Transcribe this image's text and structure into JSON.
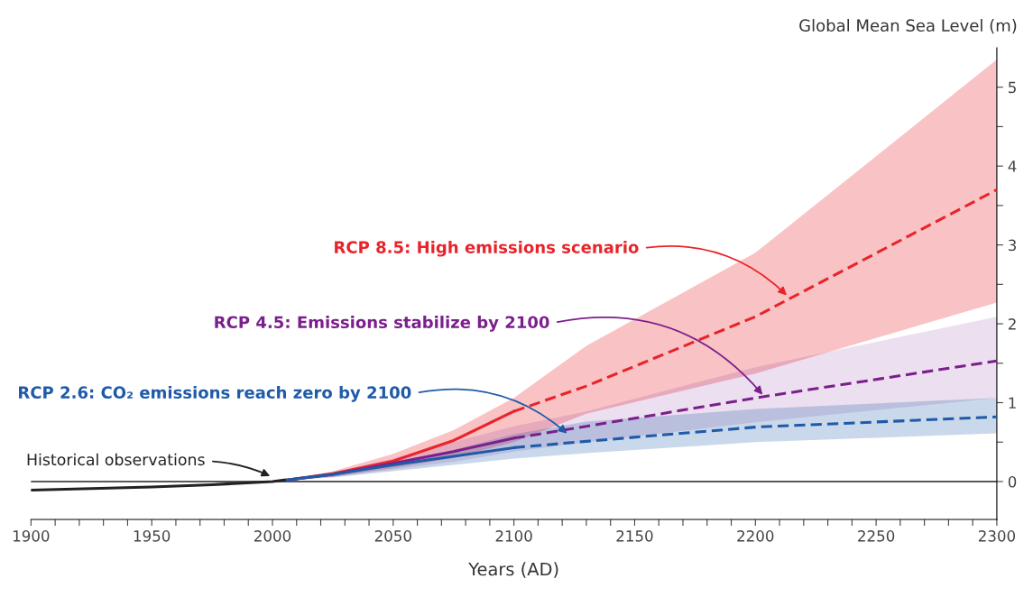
{
  "chart_data": {
    "type": "line",
    "xlabel": "Years (AD)",
    "ylabel": "Global Mean Sea Level (m)",
    "xlim": [
      1900,
      2300
    ],
    "ylim": [
      -0.48,
      5.5
    ],
    "xticks": [
      1900,
      {
        "value": 1910,
        "label": null
      },
      {
        "value": 1920,
        "label": null
      },
      {
        "value": 1930,
        "label": null
      },
      {
        "value": 1940,
        "label": null
      },
      1950,
      {
        "value": 1960,
        "label": null
      },
      {
        "value": 1970,
        "label": null
      },
      {
        "value": 1980,
        "label": null
      },
      {
        "value": 1990,
        "label": null
      },
      2000,
      {
        "value": 2010,
        "label": null
      },
      {
        "value": 2020,
        "label": null
      },
      {
        "value": 2030,
        "label": null
      },
      {
        "value": 2040,
        "label": null
      },
      2050,
      {
        "value": 2060,
        "label": null
      },
      {
        "value": 2070,
        "label": null
      },
      {
        "value": 2080,
        "label": null
      },
      {
        "value": 2090,
        "label": null
      },
      2100,
      {
        "value": 2110,
        "label": null
      },
      {
        "value": 2120,
        "label": null
      },
      {
        "value": 2130,
        "label": null
      },
      {
        "value": 2140,
        "label": null
      },
      2150,
      {
        "value": 2160,
        "label": null
      },
      {
        "value": 2170,
        "label": null
      },
      {
        "value": 2180,
        "label": null
      },
      {
        "value": 2190,
        "label": null
      },
      2200,
      {
        "value": 2210,
        "label": null
      },
      {
        "value": 2220,
        "label": null
      },
      {
        "value": 2230,
        "label": null
      },
      {
        "value": 2240,
        "label": null
      },
      2250,
      {
        "value": 2260,
        "label": null
      },
      {
        "value": 2270,
        "label": null
      },
      {
        "value": 2280,
        "label": null
      },
      {
        "value": 2290,
        "label": null
      },
      2300
    ],
    "yticks": [
      0,
      {
        "value": 0.5,
        "label": null
      },
      1,
      {
        "value": 1.5,
        "label": null
      },
      2,
      {
        "value": 2.5,
        "label": null
      },
      3,
      {
        "value": 3.5,
        "label": null
      },
      4,
      {
        "value": 4.5,
        "label": null
      },
      5
    ],
    "grid": false,
    "legend": false,
    "marker": "none",
    "ref_lines": [
      {
        "axis": "y",
        "value": 0,
        "color": "#222222",
        "line_style": "solid"
      }
    ],
    "series": [
      {
        "color": "#e8242a",
        "line_style": "solid",
        "x": [
          2006,
          2025,
          2050,
          2075,
          2100
        ],
        "values": [
          0.02,
          0.1,
          0.26,
          0.52,
          0.89
        ],
        "lower": [
          0.02,
          0.06,
          0.17,
          0.3,
          0.5
        ],
        "upper": [
          0.02,
          0.13,
          0.35,
          0.65,
          1.06
        ]
      },
      {
        "color": "#e8242a",
        "line_style": "dashed",
        "x": [
          2100,
          2130,
          2200,
          2300
        ],
        "values": [
          0.89,
          1.21,
          2.09,
          3.7
        ],
        "lower": [
          0.5,
          0.86,
          1.37,
          2.27
        ],
        "upper": [
          1.06,
          1.72,
          2.9,
          5.35
        ]
      },
      {
        "color": "#7b1f8c",
        "line_style": "solid",
        "x": [
          2006,
          2025,
          2050,
          2075,
          2100
        ],
        "values": [
          0.02,
          0.09,
          0.23,
          0.38,
          0.55
        ],
        "lower": [
          0.02,
          0.06,
          0.15,
          0.25,
          0.38
        ],
        "upper": [
          0.02,
          0.11,
          0.29,
          0.5,
          0.7
        ]
      },
      {
        "color": "#7b1f8c",
        "line_style": "dashed",
        "x": [
          2100,
          2130,
          2200,
          2300
        ],
        "values": [
          0.55,
          0.7,
          1.06,
          1.53
        ],
        "lower": [
          0.38,
          0.5,
          0.75,
          1.06
        ],
        "upper": [
          0.7,
          0.89,
          1.45,
          2.09
        ]
      },
      {
        "color": "#1f5aa8",
        "line_style": "solid",
        "x": [
          2006,
          2025,
          2050,
          2075,
          2100
        ],
        "values": [
          0.02,
          0.09,
          0.21,
          0.32,
          0.43
        ],
        "lower": [
          0.02,
          0.05,
          0.13,
          0.21,
          0.29
        ],
        "upper": [
          0.02,
          0.1,
          0.25,
          0.4,
          0.6
        ]
      },
      {
        "color": "#1f5aa8",
        "line_style": "dashed",
        "x": [
          2100,
          2130,
          2200,
          2300
        ],
        "values": [
          0.43,
          0.51,
          0.69,
          0.82
        ],
        "lower": [
          0.29,
          0.36,
          0.5,
          0.61
        ],
        "upper": [
          0.6,
          0.76,
          0.92,
          1.06
        ]
      },
      {
        "color": "#222222",
        "line_style": "solid",
        "x": [
          1900,
          1925,
          1950,
          1975,
          2000,
          2005
        ],
        "values": [
          -0.11,
          -0.09,
          -0.07,
          -0.04,
          0.0,
          0.02
        ]
      }
    ],
    "annotations": [
      {
        "text": "RCP 8.5: High emissions scenario",
        "x": 2213,
        "y": 2.36
      },
      {
        "text": "RCP 4.5: Emissions stabilize by 2100",
        "x": 2203,
        "y": 1.1
      },
      {
        "text": "RCP 2.6: CO₂ emissions reach zero by 2100",
        "x": 2122,
        "y": 0.61
      },
      {
        "text": "Historical observations",
        "x": 1999,
        "y": 0.07
      }
    ]
  }
}
